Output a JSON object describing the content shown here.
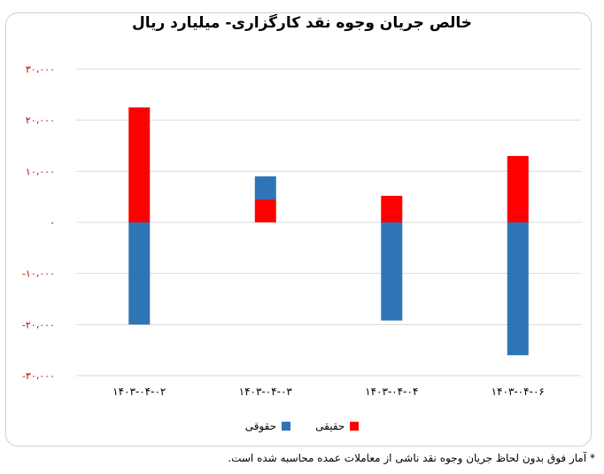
{
  "chart_data": {
    "type": "bar",
    "stacked": true,
    "title": "خالص جریان وجوه نقد کارگزاری- میلیارد ریال",
    "categories": [
      "۱۴۰۳-۰۴-۰۲",
      "۱۴۰۳-۰۴-۰۳",
      "۱۴۰۳-۰۴-۰۴",
      "۱۴۰۳-۰۴-۰۶"
    ],
    "series": [
      {
        "name": "حقیقی",
        "color": "#ff0000",
        "values": [
          22500,
          4500,
          5200,
          13000
        ]
      },
      {
        "name": "حقوقی",
        "color": "#2e75b6",
        "values": [
          -20000,
          4500,
          -19200,
          -26000
        ]
      }
    ],
    "ylim": [
      -30000,
      30000
    ],
    "yticks": [
      {
        "value": 30000,
        "label": "۳۰،۰۰۰",
        "color": "#c00000"
      },
      {
        "value": 20000,
        "label": "۲۰،۰۰۰",
        "color": "#c00000"
      },
      {
        "value": 10000,
        "label": "۱۰،۰۰۰",
        "color": "#c00000"
      },
      {
        "value": 0,
        "label": "۰",
        "color": "#000000"
      },
      {
        "value": -10000,
        "label": "-۱۰،۰۰۰",
        "color": "#c00000"
      },
      {
        "value": -20000,
        "label": "-۲۰،۰۰۰",
        "color": "#c00000"
      },
      {
        "value": -30000,
        "label": "-۳۰،۰۰۰",
        "color": "#c00000"
      }
    ],
    "grid": true,
    "legend_position": "bottom"
  },
  "legend": {
    "real_label": "حقیقی",
    "legal_label": "حقوقی"
  },
  "footnote": "* آمار فوق بدون لحاظ جریان وجوه نقد ناشی از معاملات عمده محاسبه شده است."
}
